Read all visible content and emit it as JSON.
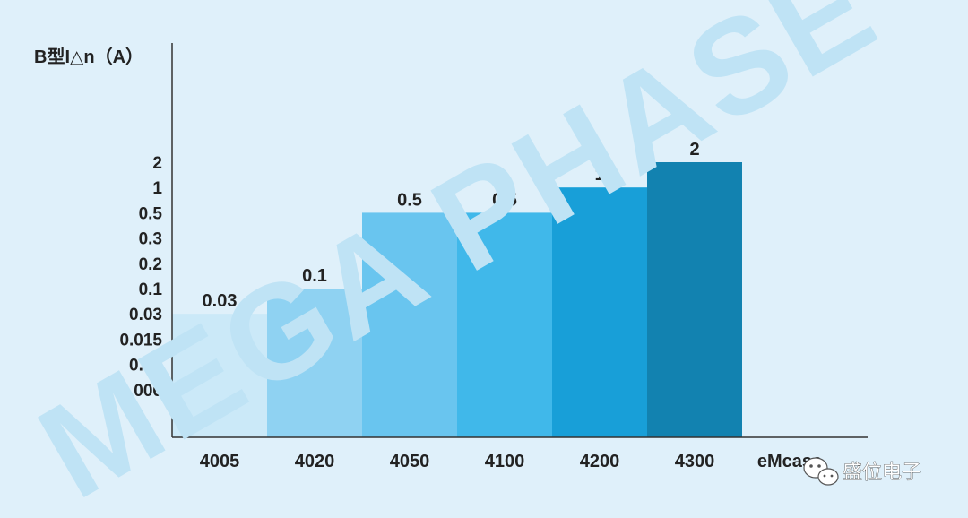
{
  "watermark": "MEGA PHASE",
  "brand": {
    "label": "盛位电子",
    "icon": "wechat-icon"
  },
  "chart_data": {
    "type": "bar",
    "ylabel": "B型I△n（A）",
    "y_ticks": [
      "2",
      "1",
      "0.5",
      "0.3",
      "0.2",
      "0.1",
      "0.03",
      "0.015",
      "0.01",
      "0.006"
    ],
    "categories": [
      "4005",
      "4020",
      "4050",
      "4100",
      "4200",
      "4300",
      "eMcase"
    ],
    "values": [
      0.03,
      0.1,
      0.5,
      0.5,
      1,
      2,
      null
    ],
    "data_labels": [
      "0.03",
      "0.1",
      "0.5",
      "0.5",
      "1",
      "2",
      ""
    ],
    "bar_colors": [
      "#cbe9f8",
      "#8fd2f2",
      "#69c5ef",
      "#40b8ea",
      "#189fd8",
      "#1282b0",
      ""
    ],
    "y_scale": "categorical",
    "grid": false,
    "colors": {
      "background": "#dff0fa",
      "axis": "#333333",
      "watermark": "#bfe3f5"
    }
  }
}
